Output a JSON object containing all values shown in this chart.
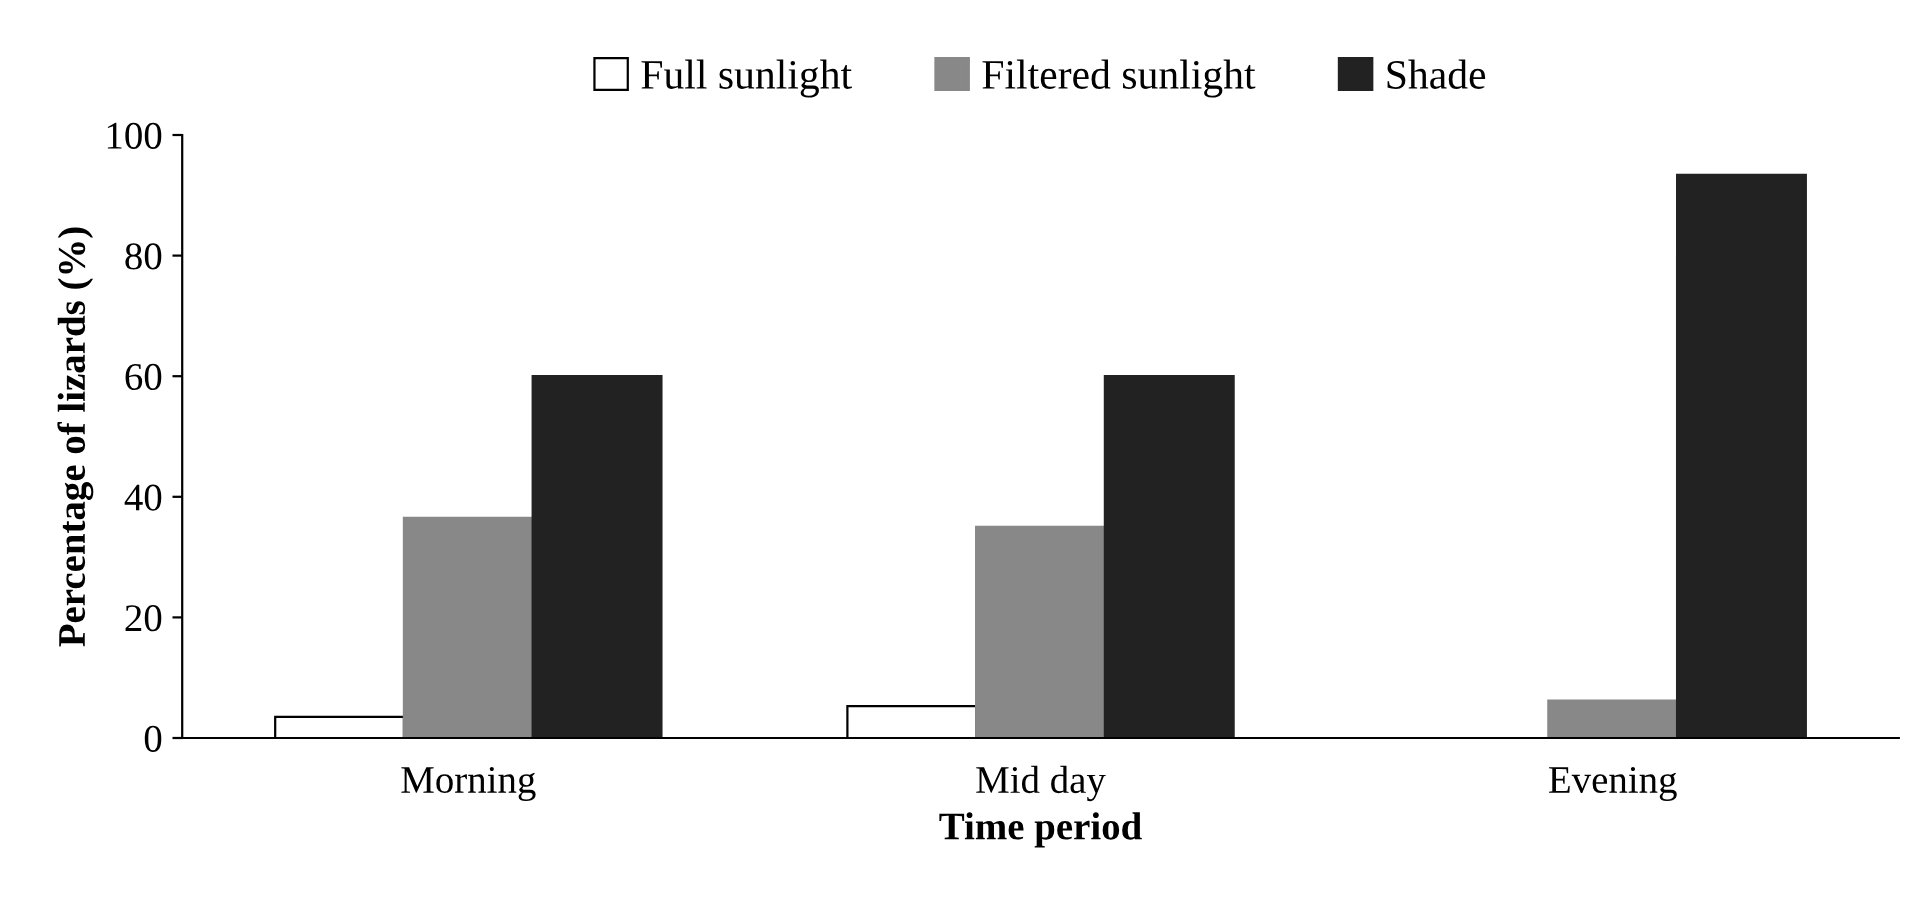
{
  "chart_data": {
    "type": "bar",
    "xlabel": "Time period",
    "ylabel": "Percentage of lizards (%)",
    "categories": [
      "Morning",
      "Mid day",
      "Evening"
    ],
    "series": [
      {
        "name": "Full sunlight",
        "color": "#ffffff",
        "values": [
          3.5,
          5.3,
          null
        ]
      },
      {
        "name": "Filtered sunlight",
        "color": "#888888",
        "values": [
          36.5,
          35,
          6.2
        ]
      },
      {
        "name": "Shade",
        "color": "#222222",
        "values": [
          60,
          60,
          93.4
        ]
      }
    ],
    "ylim": [
      0,
      100
    ],
    "yticks": [
      0,
      20,
      40,
      60,
      80,
      100
    ],
    "grid": false,
    "legend": "top"
  }
}
